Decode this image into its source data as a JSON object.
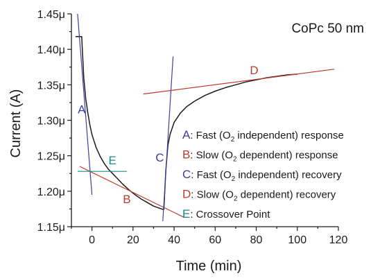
{
  "chart_data": {
    "type": "line",
    "title": "CoPc 50 nm",
    "xlabel": "Time (min)",
    "ylabel": "Current (A)",
    "xlim": [
      -10,
      120
    ],
    "ylim": [
      1.15,
      1.45
    ],
    "x_ticks": [
      {
        "value": 0,
        "label": "0"
      },
      {
        "value": 20,
        "label": "20"
      },
      {
        "value": 40,
        "label": "40"
      },
      {
        "value": 60,
        "label": "60"
      },
      {
        "value": 80,
        "label": "80"
      },
      {
        "value": 100,
        "label": "100"
      },
      {
        "value": 120,
        "label": "120"
      }
    ],
    "y_ticks": [
      {
        "value": 1.15,
        "label": "1.15μ"
      },
      {
        "value": 1.2,
        "label": "1.20μ"
      },
      {
        "value": 1.25,
        "label": "1.25μ"
      },
      {
        "value": 1.3,
        "label": "1.30μ"
      },
      {
        "value": 1.35,
        "label": "1.35μ"
      },
      {
        "value": 1.4,
        "label": "1.40μ"
      },
      {
        "value": 1.45,
        "label": "1.45μ"
      }
    ],
    "grid": false,
    "legend_position": "center-right",
    "series": [
      {
        "color": "#1a1a1a",
        "x": [
          -8,
          -5,
          -4,
          -3,
          -2,
          -1,
          0,
          2,
          4,
          6,
          8,
          10,
          12,
          15,
          18,
          21,
          24,
          27,
          30,
          33,
          35
        ],
        "y": [
          1.418,
          1.418,
          1.36,
          1.33,
          1.31,
          1.293,
          1.28,
          1.262,
          1.249,
          1.239,
          1.231,
          1.225,
          1.219,
          1.21,
          1.202,
          1.195,
          1.189,
          1.184,
          1.179,
          1.176,
          1.174
        ]
      },
      {
        "color": "#1a1a1a",
        "x": [
          35,
          36,
          37,
          38,
          40,
          43,
          46,
          50,
          55,
          60,
          65,
          70,
          75,
          80,
          85,
          90,
          95,
          100
        ],
        "y": [
          1.174,
          1.23,
          1.265,
          1.28,
          1.297,
          1.31,
          1.319,
          1.327,
          1.335,
          1.341,
          1.346,
          1.35,
          1.354,
          1.357,
          1.36,
          1.362,
          1.364,
          1.365
        ]
      }
    ],
    "fit_lines": [
      {
        "id": "A",
        "color": "#3a3f9f",
        "x": [
          -7,
          0
        ],
        "y": [
          1.45,
          1.195
        ]
      },
      {
        "id": "B",
        "color": "#c0392b",
        "x": [
          -6,
          45
        ],
        "y": [
          1.235,
          1.163
        ]
      },
      {
        "id": "C",
        "color": "#3a3f9f",
        "x": [
          34.5,
          39.5
        ],
        "y": [
          1.158,
          1.39
        ]
      },
      {
        "id": "D",
        "color": "#c0392b",
        "x": [
          25,
          118
        ],
        "y": [
          1.337,
          1.372
        ]
      },
      {
        "id": "E",
        "color": "#1a8a8a",
        "x": [
          -7,
          17
        ],
        "y": [
          1.228,
          1.228
        ]
      }
    ],
    "inline_labels": [
      {
        "text": "A",
        "color": "#3a3f9f",
        "x": -5,
        "y": 1.31
      },
      {
        "text": "B",
        "color": "#c0392b",
        "x": 17,
        "y": 1.183
      },
      {
        "text": "C",
        "color": "#3a3f9f",
        "x": 33,
        "y": 1.242
      },
      {
        "text": "D",
        "color": "#c0392b",
        "x": 79,
        "y": 1.365
      },
      {
        "text": "E",
        "color": "#1a8a8a",
        "x": 10,
        "y": 1.238
      }
    ],
    "legend": [
      {
        "key": "A",
        "key_color": "#3a3f9f",
        "before": ": Fast (O",
        "sub": "2",
        "after": " independent) response"
      },
      {
        "key": "B",
        "key_color": "#c0392b",
        "before": ": Slow (O",
        "sub": "2",
        "after": " dependent) response"
      },
      {
        "key": "C",
        "key_color": "#3a3f9f",
        "before": ": Fast (O",
        "sub": "2",
        "after": " independent) recovery"
      },
      {
        "key": "D",
        "key_color": "#c0392b",
        "before": ": Slow (O",
        "sub": "2",
        "after": " dependent) recovery"
      },
      {
        "key": "E",
        "key_color": "#1a8a8a",
        "before": ": Crossover Point",
        "sub": "",
        "after": ""
      }
    ]
  }
}
